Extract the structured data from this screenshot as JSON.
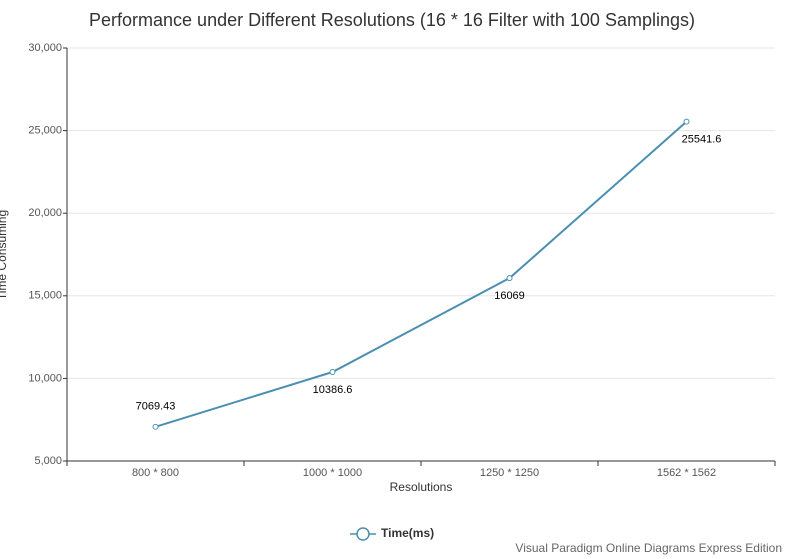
{
  "chart_data": {
    "type": "line",
    "title": "Performance under Different Resolutions (16 * 16 Filter with 100 Samplings)",
    "x_label": "Resolutions",
    "y_label": "Time Consuming",
    "categories": [
      "800 * 800",
      "1000 * 1000",
      "1250 * 1250",
      "1562 * 1562"
    ],
    "series": [
      {
        "name": "Time(ms)",
        "color": "#4a8fb0",
        "values": [
          7069.43,
          10386.6,
          16069,
          25541.6
        ]
      }
    ],
    "ylim": [
      5000,
      30000
    ],
    "yticks": [
      {
        "value": 5000,
        "label": "5,000"
      },
      {
        "value": 10000,
        "label": "10,000"
      },
      {
        "value": 15000,
        "label": "15,000"
      },
      {
        "value": 20000,
        "label": "20,000"
      },
      {
        "value": 25000,
        "label": "25,000"
      },
      {
        "value": 30000,
        "label": "30,000"
      }
    ],
    "grid": true,
    "legend": "bottom",
    "watermark": "Visual Paradigm Online Diagrams Express Edition"
  }
}
